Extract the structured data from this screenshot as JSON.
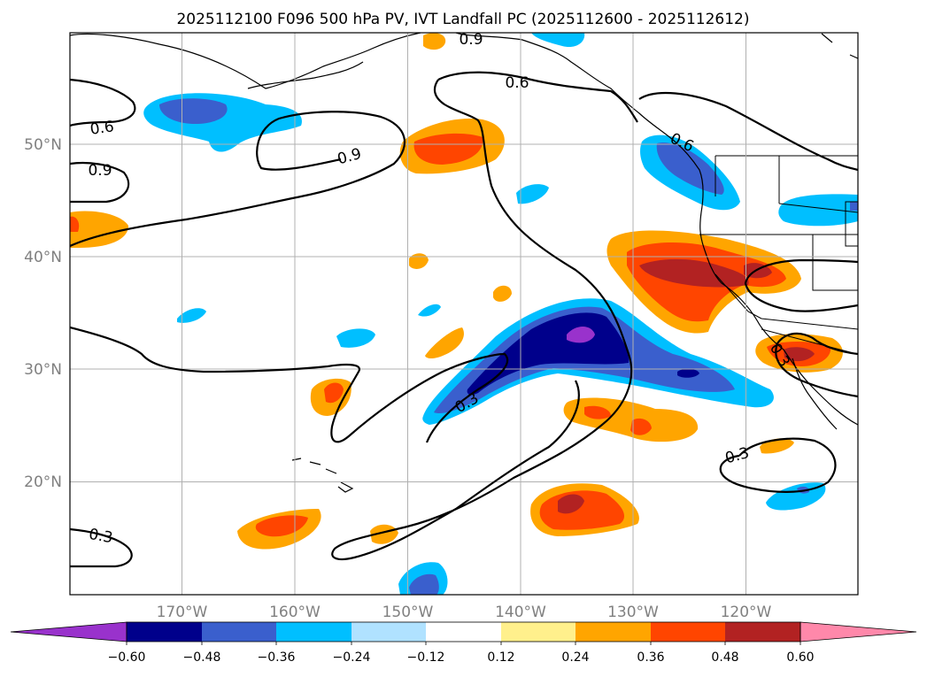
{
  "title": "2025112100 F096 500 hPa PV, IVT Landfall PC (2025112600 - 2025112612)",
  "axes": {
    "lon_labels": [
      "170°W",
      "160°W",
      "150°W",
      "140°W",
      "130°W",
      "120°W"
    ],
    "lat_labels": [
      "50°N",
      "40°N",
      "30°N",
      "20°N"
    ]
  },
  "colorbar": {
    "tick_labels": [
      "−0.60",
      "−0.48",
      "−0.36",
      "−0.24",
      "−0.12",
      "0.12",
      "0.24",
      "0.36",
      "0.48",
      "0.60"
    ],
    "colors": [
      "#9932cc",
      "#00008b",
      "#3a5fcd",
      "#00bfff",
      "#b0e2ff",
      "#ffffff",
      "#fff08c",
      "#ffa500",
      "#ff4500",
      "#b22222",
      "#ff88aa"
    ],
    "extend": "both"
  },
  "contour_labels": {
    "a": "0.9",
    "b": "0.6",
    "c": "0.6",
    "d": "0.9",
    "e": "0.9",
    "f": "0.6",
    "g": "0.3",
    "h": "0.3",
    "i": "0.3",
    "j": "0.3"
  },
  "colors": {
    "purple": "#9932cc",
    "dark_blue": "#00008b",
    "blue": "#3a5fcd",
    "sky": "#00bfff",
    "pale": "#b0e2ff",
    "yellow": "#fff08c",
    "orange": "#ffa500",
    "red_orange": "#ff4500",
    "firebrick": "#b22222",
    "pink": "#ff88aa"
  }
}
